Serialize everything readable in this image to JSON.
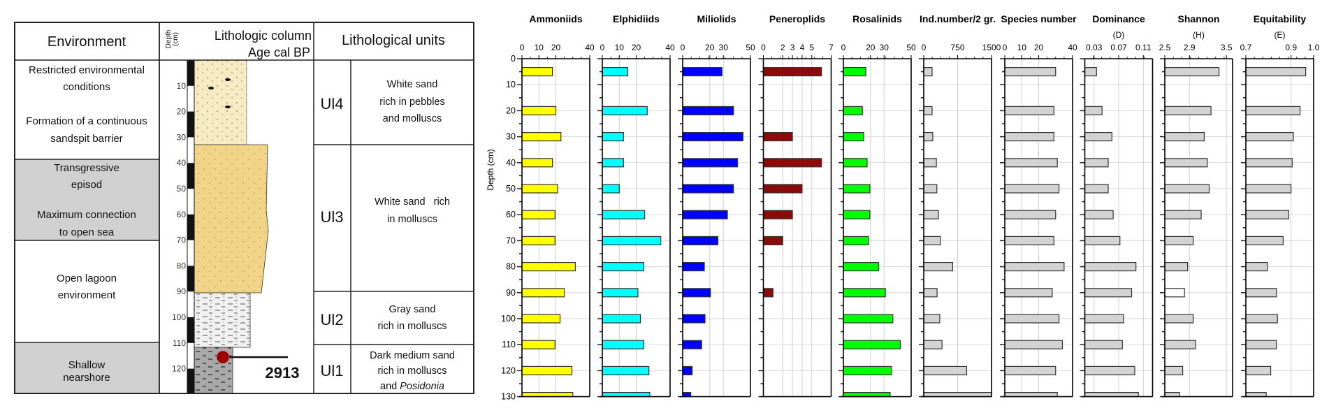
{
  "table": {
    "headers": {
      "environment": "Environment",
      "depth_line1": "Depth",
      "depth_line2": "(cm)",
      "litho_column": "Lithologic column",
      "age": "Age cal BP",
      "units": "Lithological units"
    },
    "environments": [
      {
        "lines": [
          "Restricted environmental",
          "conditions"
        ]
      },
      {
        "lines": [
          "Formation of  a continuous",
          "sandspit barrier"
        ]
      },
      {
        "lines": [
          "Transgressive",
          "episod"
        ]
      },
      {
        "lines": [
          "Maximum connection",
          "to open sea"
        ]
      },
      {
        "lines": [
          "Open lagoon",
          "environment"
        ]
      },
      {
        "lines": [
          "Shallow",
          "nearshore"
        ]
      }
    ],
    "depth_labels": [
      "10",
      "20",
      "30",
      "40",
      "50",
      "60",
      "70",
      "80",
      "90",
      "100",
      "110",
      "120"
    ],
    "sample_label": "2913",
    "units": [
      {
        "code": "Ul4",
        "lines": [
          "White sand",
          "rich in pebbles",
          "and molluscs"
        ]
      },
      {
        "code": "Ul3",
        "lines": [
          "White sand   rich",
          "in molluscs"
        ]
      },
      {
        "code": "Ul2",
        "lines": [
          "Gray sand",
          "rich in molluscs"
        ]
      },
      {
        "code": "Ul1",
        "lines": [
          "Dark medium sand",
          "rich in molluscs",
          "and "
        ],
        "italic": "Posidonia"
      }
    ],
    "colors": {
      "gray_row": "#d0d0d0",
      "layer_top": "#f7ebc3",
      "layer_white": "#f2d488",
      "layer_gray": "#ececec",
      "layer_dark": "#a8a8a8",
      "sample_dot": "#9b0000"
    }
  },
  "chart_data": {
    "type": "bar",
    "orientation": "horizontal",
    "ylabel": "Depth (cm)",
    "ylim": [
      0,
      130
    ],
    "y_ticks": [
      "0",
      "10",
      "20",
      "30",
      "40",
      "50",
      "60",
      "70",
      "80",
      "90",
      "100",
      "110",
      "120",
      "130"
    ],
    "depths": [
      5,
      20,
      30,
      40,
      50,
      60,
      70,
      80,
      90,
      100,
      110,
      120,
      130
    ],
    "grid": true,
    "panels": [
      {
        "title": "Ammoniids",
        "subtitle": "",
        "color": "#ffff00",
        "xlim": [
          0,
          40
        ],
        "ticks": [
          "0",
          "10",
          "20",
          "40"
        ],
        "values": [
          18,
          20,
          23,
          18,
          21,
          19.5,
          19.5,
          31.5,
          25,
          22.5,
          19.5,
          29.5,
          30
        ]
      },
      {
        "title": "Elphidiids",
        "subtitle": "",
        "color": "#00ffff",
        "xlim": [
          0,
          40
        ],
        "ticks": [
          "0",
          "10",
          "20",
          "40"
        ],
        "values": [
          15,
          26.5,
          12.5,
          12.5,
          10,
          25,
          34.5,
          24.5,
          21,
          22.5,
          24.5,
          27.5,
          28
        ]
      },
      {
        "title": "Miliolids",
        "subtitle": "",
        "color": "#0000ff",
        "xlim": [
          0,
          50
        ],
        "ticks": [
          "0",
          "20",
          "30",
          "50"
        ],
        "values": [
          29,
          37.5,
          44.5,
          40.5,
          37.5,
          33,
          26,
          16,
          20.5,
          16.5,
          14,
          7,
          6
        ]
      },
      {
        "title": "Peneroplids",
        "subtitle": "",
        "color": "#8b0a0a",
        "xlim": [
          0,
          7
        ],
        "ticks": [
          "0",
          "2",
          "3",
          "4",
          "5",
          "7"
        ],
        "values": [
          6,
          0,
          3,
          6,
          4,
          3,
          2,
          0,
          1,
          0,
          0,
          0,
          0
        ]
      },
      {
        "title": "Rosalinids",
        "subtitle": "",
        "color": "#00ff00",
        "xlim": [
          0,
          50
        ],
        "ticks": [
          "0",
          "20",
          "30",
          "50"
        ],
        "values": [
          16.5,
          14,
          15,
          17.5,
          19.5,
          19.5,
          18.5,
          26,
          31,
          36.5,
          42,
          35.5,
          34.5
        ]
      },
      {
        "title": "Ind.number/2 gr.",
        "subtitle": "",
        "color": "#d3d3d3",
        "xlim": [
          0,
          1500
        ],
        "ticks": [
          "0",
          "750",
          "1500"
        ],
        "values": [
          185,
          185,
          200,
          280,
          290,
          325,
          370,
          640,
          295,
          355,
          405,
          950,
          1500
        ]
      },
      {
        "title": "Species number",
        "subtitle": "",
        "color": "#d3d3d3",
        "xlim": [
          0,
          40
        ],
        "ticks": [
          "0",
          "10",
          "20",
          "40"
        ],
        "values": [
          30,
          29,
          29,
          31,
          32,
          30,
          29,
          35,
          28,
          32,
          34,
          30,
          31
        ]
      },
      {
        "title": "Dominance",
        "subtitle": "(D)",
        "color": "#d3d3d3",
        "xlim": [
          0.015,
          0.125
        ],
        "ticks": [
          "0.03",
          "0.07",
          "0.11"
        ],
        "values": [
          0.034,
          0.043,
          0.059,
          0.053,
          0.053,
          0.061,
          0.072,
          0.098,
          0.091,
          0.078,
          0.076,
          0.096,
          0.102
        ]
      },
      {
        "title": "Shannon",
        "subtitle": "(H)",
        "color": "#d3d3d3",
        "xlim": [
          2.5,
          3.6
        ],
        "ticks": [
          "2.5",
          "2.9",
          "3.5"
        ],
        "values": [
          3.38,
          3.25,
          3.14,
          3.19,
          3.22,
          3.09,
          2.96,
          2.87,
          2.82,
          2.96,
          3.0,
          2.79,
          2.74
        ],
        "highlight_depth": 90,
        "highlight_color": "#ffffff"
      },
      {
        "title": "Equitability",
        "subtitle": "(E)",
        "color": "#d3d3d3",
        "xlim": [
          0.7,
          1.0
        ],
        "ticks": [
          "0.7",
          "0.9",
          "1.0"
        ],
        "values": [
          0.965,
          0.94,
          0.91,
          0.905,
          0.9,
          0.89,
          0.865,
          0.795,
          0.835,
          0.84,
          0.835,
          0.81,
          0.79
        ]
      }
    ]
  }
}
